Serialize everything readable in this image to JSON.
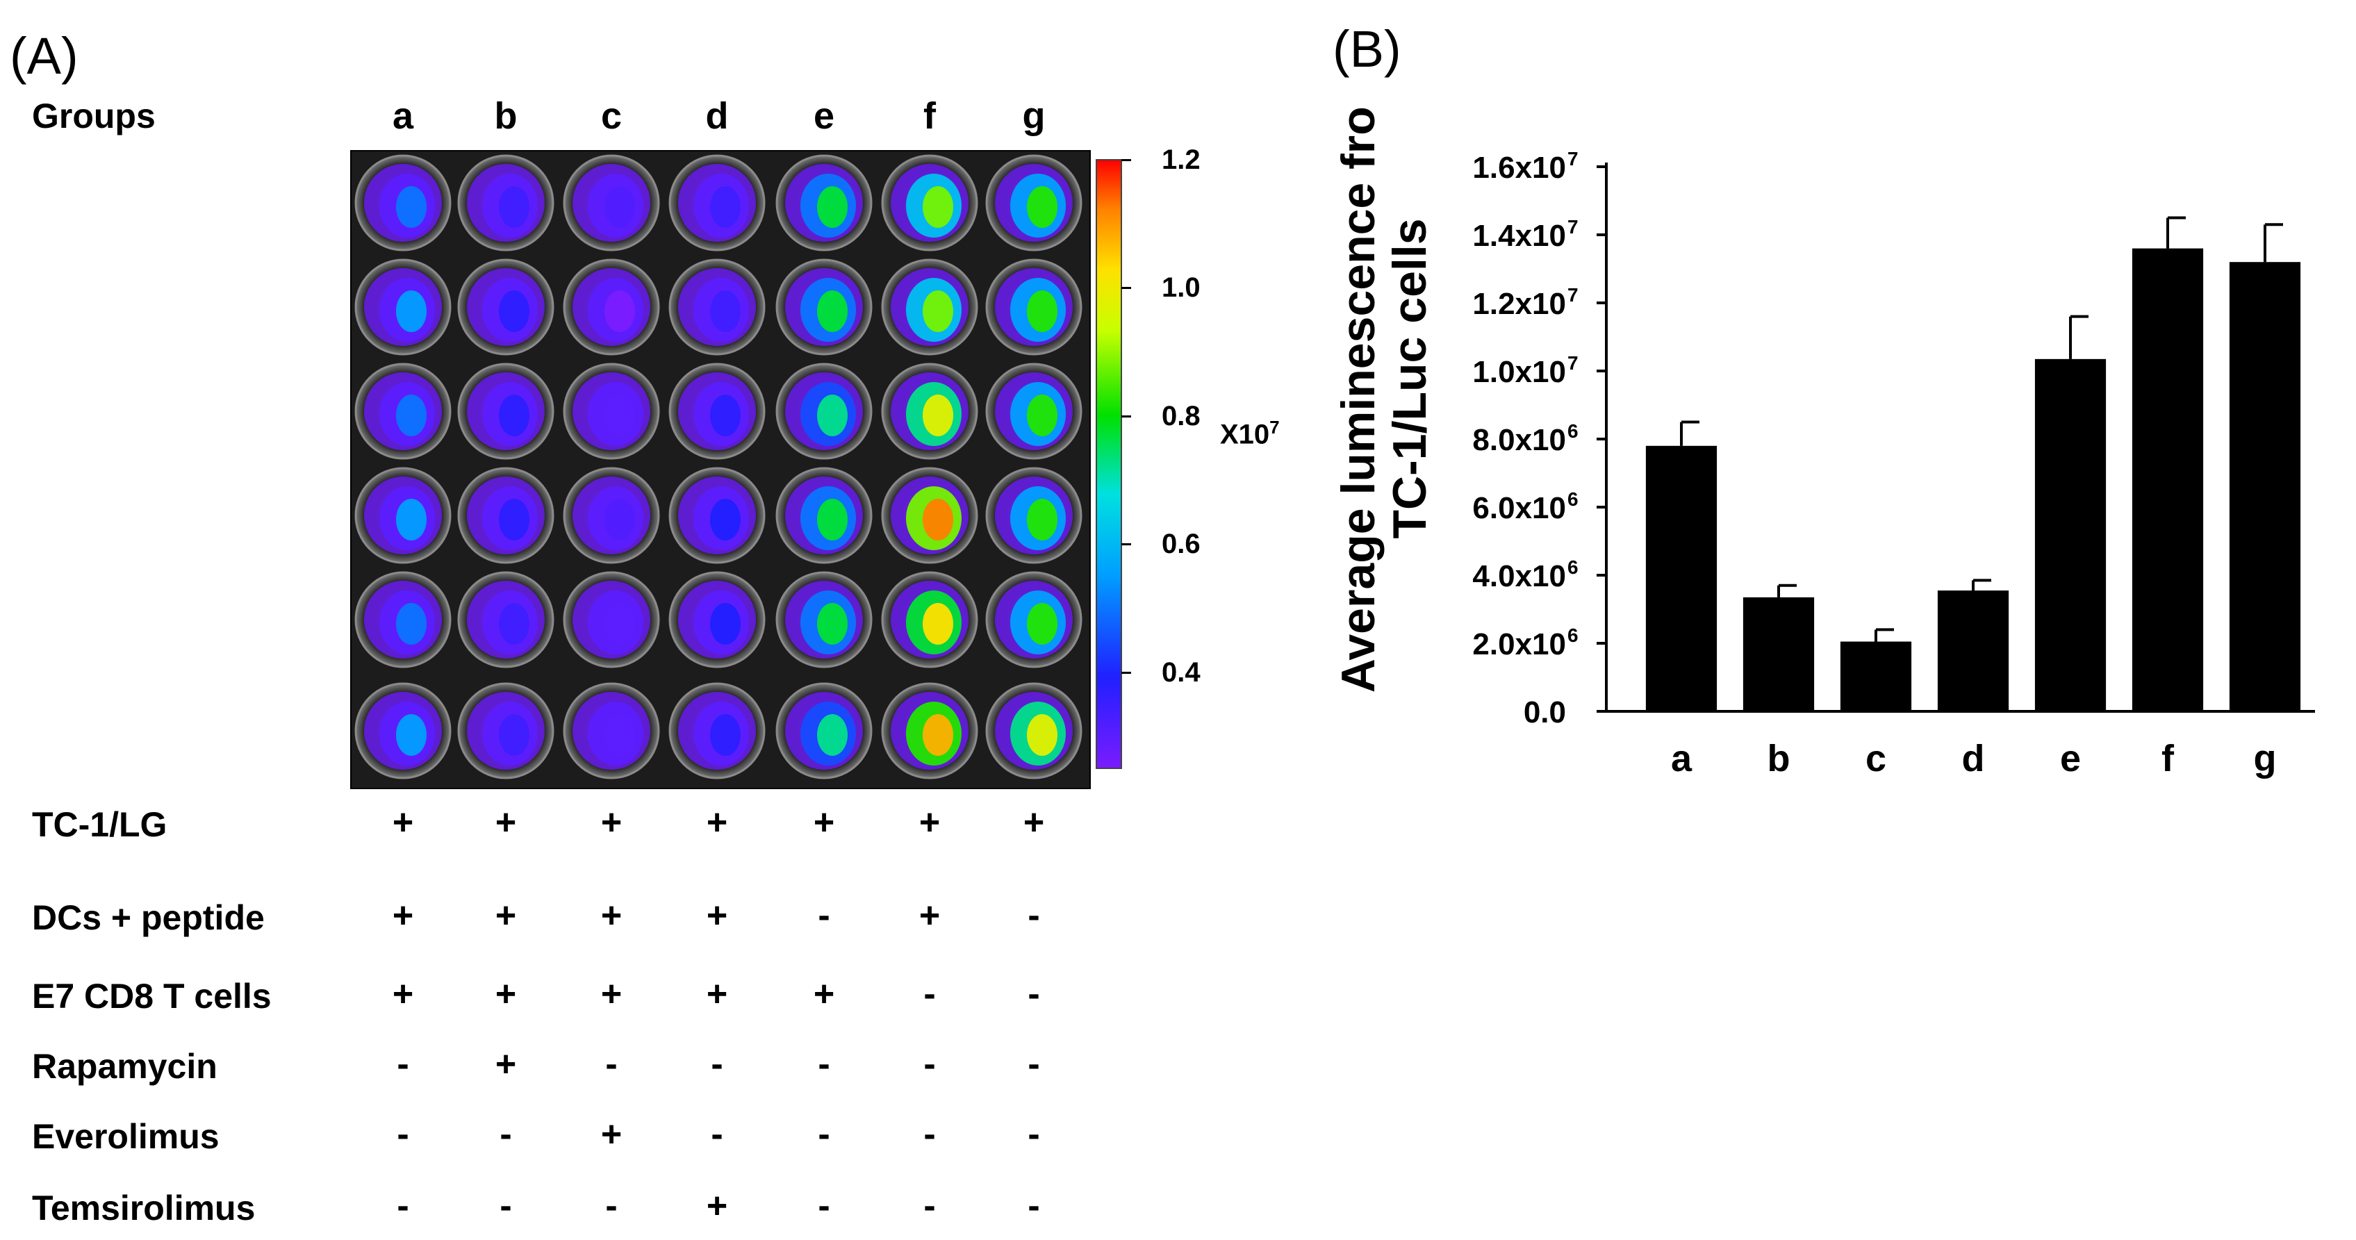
{
  "panel_a": {
    "label": "(A)",
    "groups_header": "Groups",
    "columns": [
      "a",
      "b",
      "c",
      "d",
      "e",
      "f",
      "g"
    ],
    "colorbar": {
      "ticks": [
        "1.2",
        "1.0",
        "0.8",
        "0.6",
        "0.4"
      ],
      "tick_values": [
        1.2,
        1.0,
        0.8,
        0.6,
        0.4
      ],
      "range": [
        0.25,
        1.2
      ],
      "unit_prefix": "X10",
      "unit_exponent": "7"
    },
    "plate": {
      "rows": 6,
      "columns": 7,
      "signal_levels": [
        [
          0.5,
          0.35,
          0.32,
          0.35,
          0.75,
          0.85,
          0.8
        ],
        [
          0.55,
          0.38,
          0.25,
          0.35,
          0.75,
          0.85,
          0.8
        ],
        [
          0.5,
          0.38,
          0.3,
          0.38,
          0.7,
          0.95,
          0.8
        ],
        [
          0.55,
          0.38,
          0.32,
          0.4,
          0.75,
          1.1,
          0.8
        ],
        [
          0.5,
          0.35,
          0.3,
          0.4,
          0.75,
          1.0,
          0.8
        ],
        [
          0.55,
          0.35,
          0.3,
          0.38,
          0.7,
          1.05,
          0.95
        ]
      ]
    },
    "table": {
      "rows": [
        {
          "label": "TC-1/LG",
          "values": [
            "+",
            "+",
            "+",
            "+",
            "+",
            "+",
            "+"
          ]
        },
        {
          "label": "DCs + peptide",
          "values": [
            "+",
            "+",
            "+",
            "+",
            "-",
            "+",
            "-"
          ]
        },
        {
          "label": "E7 CD8 T cells",
          "values": [
            "+",
            "+",
            "+",
            "+",
            "+",
            "-",
            "-"
          ]
        },
        {
          "label": "Rapamycin",
          "values": [
            "-",
            "+",
            "-",
            "-",
            "-",
            "-",
            "-"
          ]
        },
        {
          "label": "Everolimus",
          "values": [
            "-",
            "-",
            "+",
            "-",
            "-",
            "-",
            "-"
          ]
        },
        {
          "label": "Temsirolimus",
          "values": [
            "-",
            "-",
            "-",
            "+",
            "-",
            "-",
            "-"
          ]
        }
      ]
    }
  },
  "panel_b": {
    "label": "(B)"
  },
  "chart_data": {
    "type": "bar",
    "title": "",
    "xlabel": "",
    "ylabel_line1": "Average luminescence from",
    "ylabel_line2": "TC-1/Luc cells",
    "categories": [
      "a",
      "b",
      "c",
      "d",
      "e",
      "f",
      "g"
    ],
    "values": [
      7800000.0,
      3350000.0,
      2050000.0,
      3550000.0,
      10350000.0,
      13600000.0,
      13200000.0
    ],
    "errors": [
      700000.0,
      350000.0,
      350000.0,
      300000.0,
      1250000.0,
      900000.0,
      1100000.0
    ],
    "ylim": [
      0,
      16000000.0
    ],
    "yticks": [
      {
        "value": 0,
        "mantissa": "0.0",
        "exp": ""
      },
      {
        "value": 2000000.0,
        "mantissa": "2.0x10",
        "exp": "6"
      },
      {
        "value": 4000000.0,
        "mantissa": "4.0x10",
        "exp": "6"
      },
      {
        "value": 6000000.0,
        "mantissa": "6.0x10",
        "exp": "6"
      },
      {
        "value": 8000000.0,
        "mantissa": "8.0x10",
        "exp": "6"
      },
      {
        "value": 10000000.0,
        "mantissa": "1.0x10",
        "exp": "7"
      },
      {
        "value": 12000000.0,
        "mantissa": "1.2x10",
        "exp": "7"
      },
      {
        "value": 14000000.0,
        "mantissa": "1.4x10",
        "exp": "7"
      },
      {
        "value": 16000000.0,
        "mantissa": "1.6x10",
        "exp": "7"
      }
    ],
    "bar_color": "#000000"
  }
}
